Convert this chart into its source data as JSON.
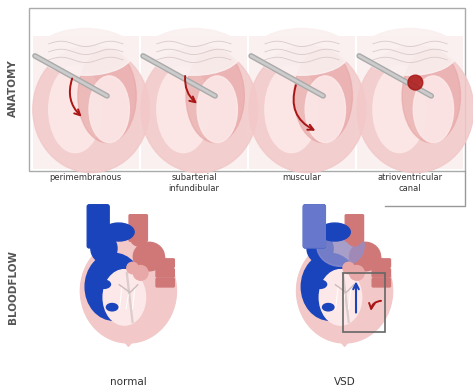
{
  "bg_color": "#ffffff",
  "anatomy_label": "ANATOMY",
  "bloodflow_label": "BLOODFLOW",
  "anatomy_sublabels": [
    "perimembranous",
    "subarterial\ninfundibular",
    "muscular",
    "atrioventricular\ncanal"
  ],
  "bloodflow_sublabels": [
    "normal",
    "VSD"
  ],
  "pink_very_light": "#fce8e8",
  "pink_light": "#f2c8c8",
  "pink_mid": "#e8a8a8",
  "pink_dark": "#d07878",
  "pink_bg": "#faf0f0",
  "red": "#aa1515",
  "blue": "#1a44bb",
  "blue_mid": "#6677cc",
  "purple": "#9090cc",
  "white_inner": "#f8f0f0",
  "gray_tube": "#aaaaaa",
  "gray_line": "#999999",
  "text_color": "#333333",
  "side_label_color": "#555555",
  "box_edge": "#aaaaaa"
}
